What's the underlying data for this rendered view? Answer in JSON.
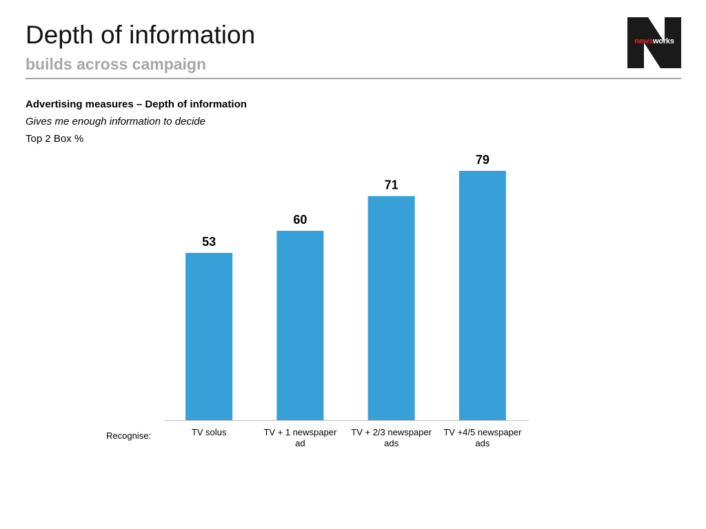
{
  "header": {
    "title": "Depth of information",
    "subtitle": "builds across campaign",
    "logo_news": "news",
    "logo_works": "works"
  },
  "chart_text": {
    "heading": "Advertising measures – Depth of information",
    "subheading": "Gives me enough information to decide",
    "measure": "Top 2 Box %",
    "row_label": "Recognise:"
  },
  "colors": {
    "bar": "#37a0d9",
    "axis": "#bfbfbf",
    "subtitle": "#a6a6a6",
    "logo_bg": "#1a1a1a",
    "logo_accent": "#e4222f"
  },
  "chart_data": {
    "type": "bar",
    "title": "Advertising measures – Depth of information",
    "categories": [
      [
        "TV solus"
      ],
      [
        "TV + 1 newspaper",
        "ad"
      ],
      [
        "TV + 2/3 newspaper",
        "ads"
      ],
      [
        "TV +4/5 newspaper",
        "ads"
      ]
    ],
    "values": [
      53,
      60,
      71,
      79
    ],
    "data_labels": true,
    "ylim": [
      0,
      80
    ],
    "grid": false,
    "legend": "none"
  }
}
